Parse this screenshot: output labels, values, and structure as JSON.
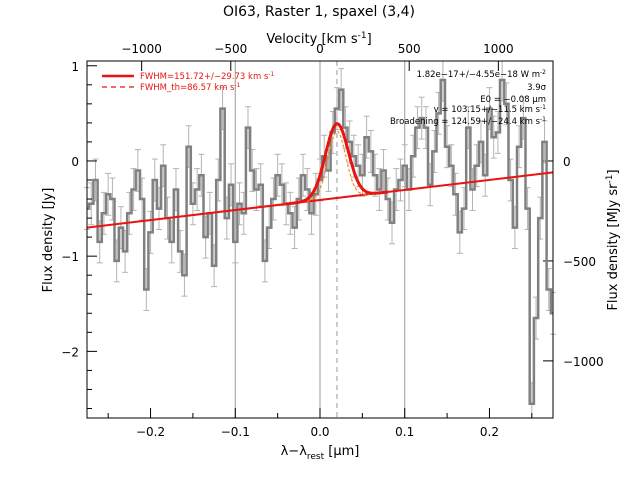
{
  "chart_data": {
    "type": "line",
    "title": "OI63, Raster 1, spaxel (3,4)",
    "xlabel": "λ−λ",
    "xlabel_sub": "rest",
    "xlabel_unit": "[μm]",
    "ylabel": "Flux density [Jy]",
    "top_xlabel": "Velocity [km s",
    "top_xlabel_sup": "-1",
    "top_xlabel_end": "]",
    "right_ylabel": "Flux density [MJy sr",
    "right_ylabel_sup": "-1",
    "right_ylabel_end": "]",
    "xlim": [
      -0.275,
      0.275
    ],
    "ylim": [
      -2.7,
      1.05
    ],
    "x_ticks": [
      -0.2,
      -0.1,
      0.0,
      0.1,
      0.2
    ],
    "x_tick_labels": [
      "−0.2",
      "−0.1",
      "0.0",
      "0.1",
      "0.2"
    ],
    "y_ticks": [
      -2,
      -1,
      0,
      1
    ],
    "y_tick_labels": [
      "−2",
      "−1",
      "0",
      "1"
    ],
    "top_ticks": [
      -1000,
      -500,
      0,
      500,
      1000
    ],
    "top_tick_labels": [
      "−1000",
      "−500",
      "0",
      "500",
      "1000"
    ],
    "top_tick_x": [
      -0.2105,
      -0.1053,
      0.0,
      0.1053,
      0.2105
    ],
    "right_ticks": [
      0,
      -500,
      -1000
    ],
    "right_tick_labels": [
      "0",
      "−500",
      "−1000"
    ],
    "right_tick_y": [
      0.0,
      -1.05,
      -2.1
    ],
    "vertical_lines": [
      -0.1,
      0.0,
      0.1
    ],
    "line_center": 0.02,
    "legend": [
      {
        "label": "FWHM=151.72+/−29.73 km s",
        "sup": "-1",
        "style": "solid",
        "color": "#e8140f"
      },
      {
        "label": "FWHM_th=86.57 km s",
        "sup": "-1",
        "style": "dashed",
        "color": "#e8140f"
      }
    ],
    "annotations": [
      "1.82e−17+/−4.55e−18 W m",
      "3.9σ",
      "E0",
      "= −0.08 μm",
      "v = 103.15+/−11.5 km s",
      "Broadening = 124.59+/−24.4 km s"
    ],
    "annotation_sup": [
      "-2",
      "",
      "",
      "",
      "-1",
      "-1"
    ],
    "spectrum": {
      "name": "data",
      "color": "#808080",
      "x": [
        -0.275,
        -0.27,
        -0.265,
        -0.26,
        -0.255,
        -0.25,
        -0.245,
        -0.24,
        -0.235,
        -0.23,
        -0.225,
        -0.22,
        -0.215,
        -0.21,
        -0.205,
        -0.2,
        -0.195,
        -0.19,
        -0.185,
        -0.18,
        -0.175,
        -0.17,
        -0.165,
        -0.16,
        -0.155,
        -0.15,
        -0.145,
        -0.14,
        -0.135,
        -0.13,
        -0.125,
        -0.12,
        -0.115,
        -0.11,
        -0.105,
        -0.1,
        -0.095,
        -0.09,
        -0.085,
        -0.08,
        -0.075,
        -0.07,
        -0.065,
        -0.06,
        -0.055,
        -0.05,
        -0.045,
        -0.04,
        -0.035,
        -0.03,
        -0.025,
        -0.02,
        -0.015,
        -0.01,
        -0.005,
        0.0,
        0.005,
        0.01,
        0.015,
        0.02,
        0.025,
        0.03,
        0.035,
        0.04,
        0.045,
        0.05,
        0.055,
        0.06,
        0.065,
        0.07,
        0.075,
        0.08,
        0.085,
        0.09,
        0.095,
        0.1,
        0.105,
        0.11,
        0.115,
        0.12,
        0.125,
        0.13,
        0.135,
        0.14,
        0.145,
        0.15,
        0.155,
        0.16,
        0.165,
        0.17,
        0.175,
        0.18,
        0.185,
        0.19,
        0.195,
        0.2,
        0.205,
        0.21,
        0.215,
        0.22,
        0.225,
        0.23,
        0.235,
        0.24,
        0.245,
        0.25,
        0.255,
        0.26,
        0.265,
        0.27,
        0.275
      ],
      "y": [
        -0.5,
        -0.45,
        -0.2,
        -0.85,
        -0.55,
        -0.35,
        -0.4,
        -1.05,
        -0.7,
        -0.95,
        -0.55,
        -0.3,
        -0.1,
        -0.4,
        -1.35,
        -0.75,
        -0.2,
        -0.5,
        -0.05,
        -0.6,
        -0.85,
        -0.3,
        -0.95,
        -1.2,
        0.15,
        -0.45,
        -0.3,
        -0.15,
        -0.8,
        -0.55,
        -1.1,
        -0.2,
        0.55,
        -0.6,
        -0.25,
        -0.85,
        -0.45,
        -0.55,
        0.35,
        -0.1,
        -0.3,
        -0.25,
        -1.05,
        -0.7,
        -0.4,
        -0.15,
        -0.25,
        -0.45,
        -0.55,
        -0.7,
        -0.4,
        -0.15,
        -0.3,
        -0.55,
        -0.35,
        -0.2,
        0.05,
        -0.1,
        0.3,
        0.55,
        0.75,
        0.35,
        0.2,
        0.05,
        -0.05,
        -0.15,
        0.25,
        0.1,
        -0.15,
        -0.3,
        -0.1,
        -0.4,
        -0.65,
        -0.3,
        -0.2,
        -0.05,
        -0.3,
        0.05,
        0.35,
        0.45,
        0.35,
        -0.25,
        0.1,
        0.5,
        0.85,
        0.15,
        -0.05,
        -0.35,
        -0.75,
        -0.5,
        0.35,
        -0.3,
        -0.05,
        0.2,
        -0.15,
        0.55,
        0.25,
        0.3,
        0.85,
        0.6,
        -0.2,
        -0.7,
        0.15,
        0.45,
        -0.5,
        -2.55,
        -1.65,
        -0.6,
        0.2,
        -1.35,
        -1.6
      ],
      "err": 0.22
    },
    "continuum": {
      "name": "continuum",
      "color": "#e8140f",
      "x": [
        -0.275,
        0.275
      ],
      "y": [
        -0.7,
        -0.12
      ]
    },
    "gaussian_fit": {
      "name": "fit",
      "color": "#e8140f",
      "center": 0.02,
      "amplitude": 0.78,
      "sigma": 0.0135
    },
    "thermal_fit": {
      "name": "thermal",
      "color": "#f08a20",
      "center": 0.02,
      "amplitude": 0.7,
      "sigma": 0.0105
    }
  }
}
